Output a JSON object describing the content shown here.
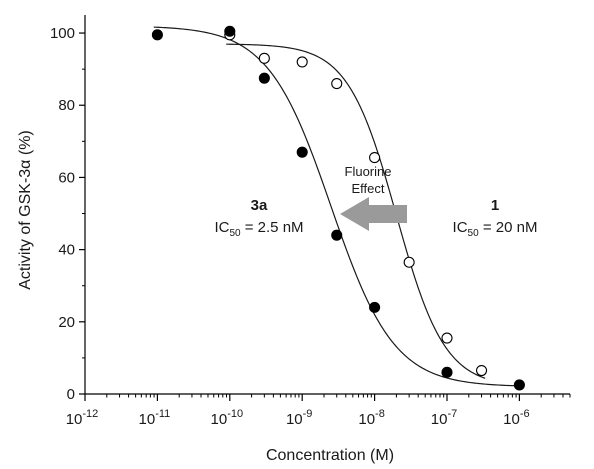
{
  "chart_data": {
    "type": "scatter",
    "xlabel": "Concentration (M)",
    "ylabel": "Activity of GSK-3α (%)",
    "xscale": "log",
    "xlim": [
      1e-12,
      5e-06
    ],
    "ylim": [
      0,
      105
    ],
    "x_ticks": [
      {
        "value": 1e-12,
        "label_base": "10",
        "label_exp": "-12"
      },
      {
        "value": 1e-11,
        "label_base": "10",
        "label_exp": "-11"
      },
      {
        "value": 1e-10,
        "label_base": "10",
        "label_exp": "-10"
      },
      {
        "value": 1e-09,
        "label_base": "10",
        "label_exp": "-9"
      },
      {
        "value": 1e-08,
        "label_base": "10",
        "label_exp": "-8"
      },
      {
        "value": 1e-07,
        "label_base": "10",
        "label_exp": "-7"
      },
      {
        "value": 1e-06,
        "label_base": "10",
        "label_exp": "-6"
      }
    ],
    "y_ticks": [
      {
        "value": 0,
        "label": "0"
      },
      {
        "value": 20,
        "label": "20"
      },
      {
        "value": 40,
        "label": "40"
      },
      {
        "value": 60,
        "label": "60"
      },
      {
        "value": 80,
        "label": "80"
      },
      {
        "value": 100,
        "label": "100"
      }
    ],
    "grid": false,
    "series": [
      {
        "marker": "filled-circle",
        "color": "#000000",
        "points": [
          {
            "x": 1e-11,
            "y": 99.5
          },
          {
            "x": 1e-10,
            "y": 100.5
          },
          {
            "x": 3e-10,
            "y": 87.5
          },
          {
            "x": 1e-09,
            "y": 67
          },
          {
            "x": 3e-09,
            "y": 44
          },
          {
            "x": 1e-08,
            "y": 24
          },
          {
            "x": 1e-07,
            "y": 6
          },
          {
            "x": 1e-06,
            "y": 2.5
          }
        ],
        "fit": {
          "top": 102,
          "bottom": 2,
          "ic50": 2.5e-09,
          "hill": 1
        }
      },
      {
        "marker": "open-circle",
        "color": "#000000",
        "points": [
          {
            "x": 1e-10,
            "y": 99.5
          },
          {
            "x": 3e-10,
            "y": 93
          },
          {
            "x": 1e-09,
            "y": 92
          },
          {
            "x": 3e-09,
            "y": 86
          },
          {
            "x": 1e-08,
            "y": 65.5
          },
          {
            "x": 3e-08,
            "y": 36.5
          },
          {
            "x": 1e-07,
            "y": 15.5
          },
          {
            "x": 3e-07,
            "y": 6.5
          }
        ],
        "fit": {
          "top": 97,
          "bottom": 2,
          "ic50": 2e-08,
          "hill": 1.3
        }
      }
    ],
    "annotations": {
      "left_compound": "3a",
      "left_ic50_prefix": "IC",
      "left_ic50_sub": "50",
      "left_ic50_value": " = 2.5 nM",
      "right_compound": "1",
      "right_ic50_prefix": "IC",
      "right_ic50_sub": "50",
      "right_ic50_value": " = 20 nM",
      "arrow_line1": "Fluorine",
      "arrow_line2": "Effect",
      "arrow_color": "#9a9a9a"
    }
  }
}
